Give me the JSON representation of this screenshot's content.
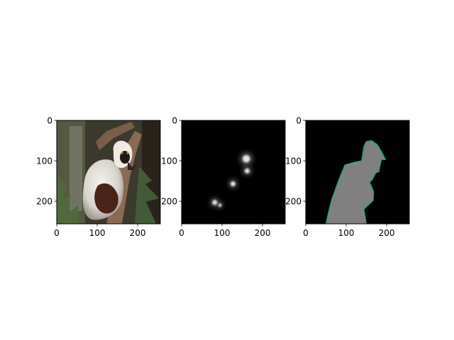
{
  "chart_data": [
    {
      "type": "image",
      "content": "photo",
      "xlim": [
        0,
        256
      ],
      "ylim": [
        256,
        0
      ],
      "xticks": [
        0,
        100,
        200
      ],
      "yticks": [
        0,
        100,
        200
      ],
      "xtick_labels": [
        "0",
        "100",
        "200"
      ],
      "ytick_labels": [
        "0",
        "100",
        "200"
      ],
      "grid": false
    },
    {
      "type": "image",
      "content": "saliency-map",
      "xlim": [
        0,
        256
      ],
      "ylim": [
        256,
        0
      ],
      "xticks": [
        0,
        100,
        200
      ],
      "yticks": [
        0,
        100,
        200
      ],
      "xtick_labels": [
        "0",
        "100",
        "200"
      ],
      "ytick_labels": [
        "0",
        "100",
        "200"
      ],
      "grid": false,
      "blobs": [
        {
          "cx": 160,
          "cy": 95,
          "r": 9
        },
        {
          "cx": 162,
          "cy": 125,
          "r": 6
        },
        {
          "cx": 127,
          "cy": 157,
          "r": 6
        },
        {
          "cx": 82,
          "cy": 203,
          "r": 6
        },
        {
          "cx": 95,
          "cy": 210,
          "r": 4
        }
      ]
    },
    {
      "type": "image",
      "content": "segmentation-mask",
      "xlim": [
        0,
        256
      ],
      "ylim": [
        256,
        0
      ],
      "xticks": [
        0,
        100,
        200
      ],
      "yticks": [
        0,
        100,
        200
      ],
      "xtick_labels": [
        "0",
        "100",
        "200"
      ],
      "ytick_labels": [
        "0",
        "100",
        "200"
      ],
      "grid": false,
      "mask_outline": [
        [
          50,
          256
        ],
        [
          55,
          232
        ],
        [
          64,
          196
        ],
        [
          82,
          146
        ],
        [
          97,
          110
        ],
        [
          123,
          103
        ],
        [
          138,
          100
        ],
        [
          144,
          63
        ],
        [
          150,
          52
        ],
        [
          163,
          50
        ],
        [
          177,
          60
        ],
        [
          190,
          82
        ],
        [
          197,
          97
        ],
        [
          187,
          97
        ],
        [
          183,
          115
        ],
        [
          181,
          127
        ],
        [
          173,
          130
        ],
        [
          165,
          146
        ],
        [
          158,
          153
        ],
        [
          168,
          176
        ],
        [
          167,
          198
        ],
        [
          144,
          220
        ],
        [
          150,
          256
        ]
      ],
      "colors": {
        "background": "#000000",
        "fill": "#808080",
        "edge": "#00a887"
      }
    }
  ]
}
